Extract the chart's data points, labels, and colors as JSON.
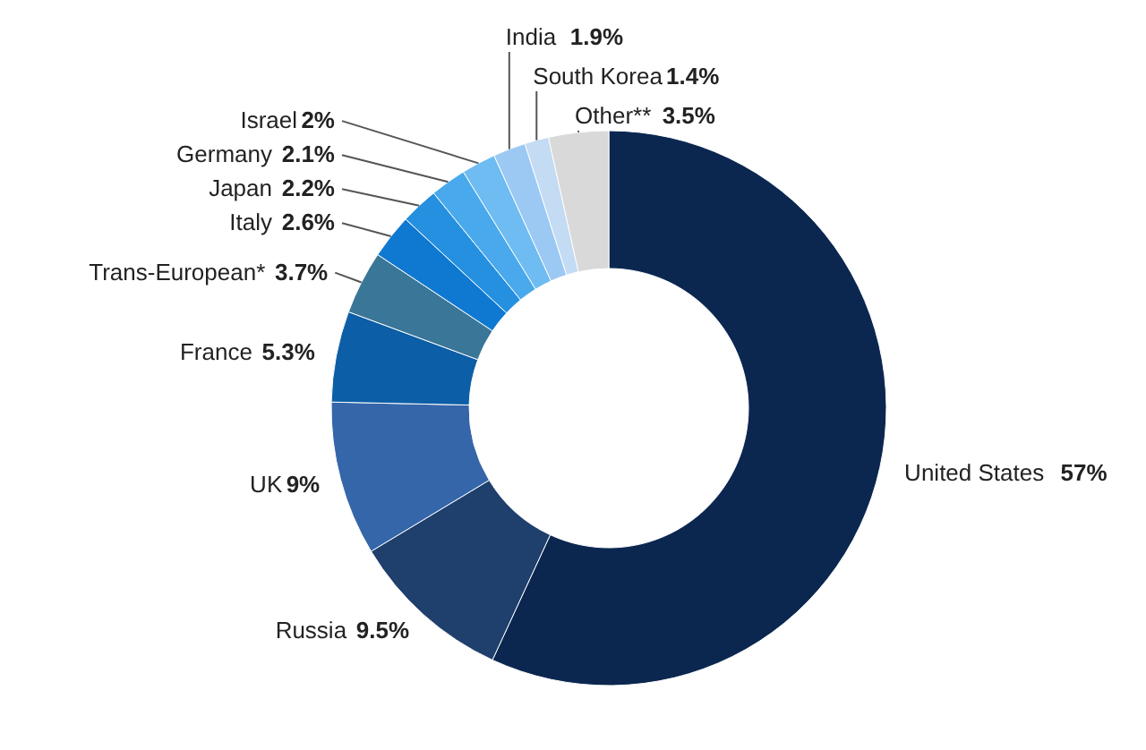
{
  "chart_data": {
    "type": "donut",
    "categories": [
      "United States",
      "Russia",
      "UK",
      "France",
      "Trans-European*",
      "Italy",
      "Japan",
      "Germany",
      "Israel",
      "India",
      "South Korea",
      "Other**"
    ],
    "values": [
      57,
      9.5,
      9,
      5.3,
      3.7,
      2.6,
      2.2,
      2.1,
      2,
      1.9,
      1.4,
      3.5
    ],
    "value_labels": [
      "57%",
      "9.5%",
      "9%",
      "5.3%",
      "3.7%",
      "2.6%",
      "2.2%",
      "2.1%",
      "2%",
      "1.9%",
      "1.4%",
      "3.5%"
    ],
    "colors": [
      "#0b2750",
      "#1f3f6d",
      "#3566a9",
      "#0c5ea6",
      "#3a7698",
      "#0f79d2",
      "#2690e0",
      "#4aa9ec",
      "#6ebcf2",
      "#9cc9f4",
      "#c3dbf3",
      "#d9d9d9"
    ]
  }
}
